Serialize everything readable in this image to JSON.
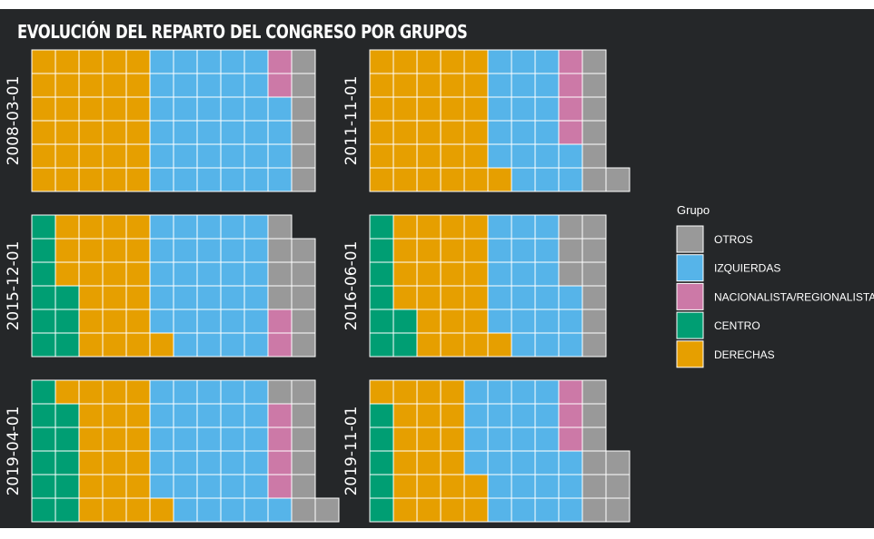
{
  "chart_data": {
    "type": "waffle",
    "title": "EVOLUCIÓN DEL REPARTO DEL CONGRESO POR GRUPOS",
    "legend": {
      "title": "Grupo",
      "position": "right",
      "items": [
        {
          "name": "OTROS",
          "color": "#999999"
        },
        {
          "name": "IZQUIERDAS",
          "color": "#56B4E9"
        },
        {
          "name": "NACIONALISTA/REGIONALISTA",
          "color": "#CC79A7"
        },
        {
          "name": "CENTRO",
          "color": "#009E73"
        },
        {
          "name": "DERECHAS",
          "color": "#E69F00"
        }
      ]
    },
    "panels": [
      {
        "date": "2008-03-01",
        "fill_order": [
          "D",
          "D",
          "D",
          "D",
          "D",
          "D",
          "D",
          "D",
          "D",
          "D",
          "D",
          "D",
          "D",
          "D",
          "D",
          "D",
          "D",
          "D",
          "D",
          "D",
          "D",
          "D",
          "D",
          "D",
          "D",
          "D",
          "D",
          "D",
          "D",
          "D",
          "I",
          "I",
          "I",
          "I",
          "I",
          "I",
          "I",
          "I",
          "I",
          "I",
          "I",
          "I",
          "I",
          "I",
          "I",
          "I",
          "I",
          "I",
          "I",
          "I",
          "I",
          "I",
          "I",
          "I",
          "I",
          "I",
          "I",
          "I",
          "I",
          "I",
          "I",
          "I",
          "I",
          "I",
          "N",
          "N",
          "O",
          "O",
          "O",
          "O",
          "O",
          "O"
        ]
      },
      {
        "date": "2011-11-01",
        "fill_order": [
          "D",
          "D",
          "D",
          "D",
          "D",
          "D",
          "D",
          "D",
          "D",
          "D",
          "D",
          "D",
          "D",
          "D",
          "D",
          "D",
          "D",
          "D",
          "D",
          "D",
          "D",
          "D",
          "D",
          "D",
          "D",
          "D",
          "D",
          "D",
          "D",
          "D",
          "D",
          "I",
          "I",
          "I",
          "I",
          "I",
          "I",
          "I",
          "I",
          "I",
          "I",
          "I",
          "I",
          "I",
          "I",
          "I",
          "I",
          "I",
          "I",
          "I",
          "N",
          "N",
          "N",
          "N",
          "O",
          "O",
          "O",
          "O",
          "O",
          "O",
          "O"
        ]
      },
      {
        "date": "2015-12-01",
        "fill_order": [
          "C",
          "C",
          "C",
          "C",
          "C",
          "C",
          "C",
          "C",
          "C",
          "D",
          "D",
          "D",
          "D",
          "D",
          "D",
          "D",
          "D",
          "D",
          "D",
          "D",
          "D",
          "D",
          "D",
          "D",
          "D",
          "D",
          "D",
          "D",
          "D",
          "D",
          "D",
          "I",
          "I",
          "I",
          "I",
          "I",
          "I",
          "I",
          "I",
          "I",
          "I",
          "I",
          "I",
          "I",
          "I",
          "I",
          "I",
          "I",
          "I",
          "I",
          "I",
          "I",
          "I",
          "I",
          "I",
          "I",
          "I",
          "I",
          "I",
          "I",
          "N",
          "N",
          "O",
          "O",
          "O",
          "O",
          "O",
          "O",
          "O",
          "O",
          "O"
        ]
      },
      {
        "date": "2016-06-01",
        "fill_order": [
          "C",
          "C",
          "C",
          "C",
          "C",
          "C",
          "C",
          "C",
          "D",
          "D",
          "D",
          "D",
          "D",
          "D",
          "D",
          "D",
          "D",
          "D",
          "D",
          "D",
          "D",
          "D",
          "D",
          "D",
          "D",
          "D",
          "D",
          "D",
          "D",
          "D",
          "D",
          "I",
          "I",
          "I",
          "I",
          "I",
          "I",
          "I",
          "I",
          "I",
          "I",
          "I",
          "I",
          "I",
          "I",
          "I",
          "I",
          "I",
          "I",
          "I",
          "I",
          "O",
          "O",
          "O",
          "O",
          "O",
          "O",
          "O",
          "O",
          "O"
        ]
      },
      {
        "date": "2019-04-01",
        "fill_order": [
          "C",
          "C",
          "C",
          "C",
          "C",
          "C",
          "C",
          "C",
          "C",
          "C",
          "C",
          "D",
          "D",
          "D",
          "D",
          "D",
          "D",
          "D",
          "D",
          "D",
          "D",
          "D",
          "D",
          "D",
          "D",
          "D",
          "D",
          "D",
          "D",
          "D",
          "D",
          "I",
          "I",
          "I",
          "I",
          "I",
          "I",
          "I",
          "I",
          "I",
          "I",
          "I",
          "I",
          "I",
          "I",
          "I",
          "I",
          "I",
          "I",
          "I",
          "I",
          "I",
          "I",
          "I",
          "I",
          "I",
          "I",
          "I",
          "I",
          "I",
          "I",
          "N",
          "N",
          "N",
          "N",
          "O",
          "O",
          "O",
          "O",
          "O",
          "O",
          "O",
          "O"
        ]
      },
      {
        "date": "2019-11-01",
        "fill_order": [
          "C",
          "C",
          "C",
          "C",
          "C",
          "D",
          "D",
          "D",
          "D",
          "D",
          "D",
          "D",
          "D",
          "D",
          "D",
          "D",
          "D",
          "D",
          "D",
          "D",
          "D",
          "D",
          "D",
          "D",
          "D",
          "D",
          "I",
          "I",
          "I",
          "I",
          "I",
          "I",
          "I",
          "I",
          "I",
          "I",
          "I",
          "I",
          "I",
          "I",
          "I",
          "I",
          "I",
          "I",
          "I",
          "I",
          "I",
          "I",
          "I",
          "I",
          "I",
          "N",
          "N",
          "N",
          "O",
          "O",
          "O",
          "O",
          "O",
          "O",
          "O",
          "O",
          "O"
        ]
      }
    ]
  }
}
